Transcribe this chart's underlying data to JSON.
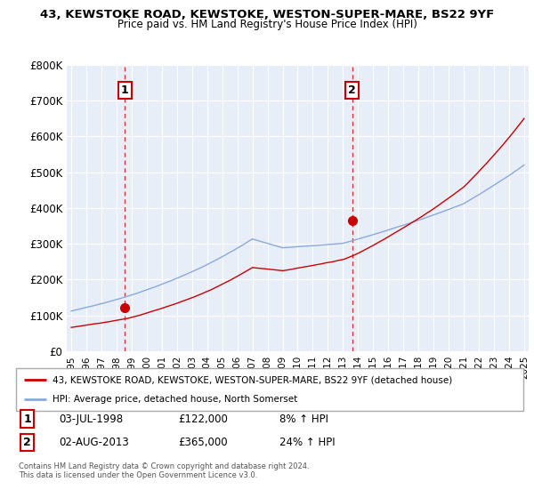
{
  "title": "43, KEWSTOKE ROAD, KEWSTOKE, WESTON-SUPER-MARE, BS22 9YF",
  "subtitle": "Price paid vs. HM Land Registry's House Price Index (HPI)",
  "legend_line1": "43, KEWSTOKE ROAD, KEWSTOKE, WESTON-SUPER-MARE, BS22 9YF (detached house)",
  "legend_line2": "HPI: Average price, detached house, North Somerset",
  "footnote": "Contains HM Land Registry data © Crown copyright and database right 2024.\nThis data is licensed under the Open Government Licence v3.0.",
  "sale1_label": "1",
  "sale1_date": "03-JUL-1998",
  "sale1_price": "£122,000",
  "sale1_hpi": "8% ↑ HPI",
  "sale2_label": "2",
  "sale2_date": "02-AUG-2013",
  "sale2_price": "£365,000",
  "sale2_hpi": "24% ↑ HPI",
  "property_color": "#cc0000",
  "hpi_color": "#88aadd",
  "chart_bg": "#e8eef8",
  "ylim": [
    0,
    800000
  ],
  "yticks": [
    0,
    100000,
    200000,
    300000,
    400000,
    500000,
    600000,
    700000,
    800000
  ],
  "ytick_labels": [
    "£0",
    "£100K",
    "£200K",
    "£300K",
    "£400K",
    "£500K",
    "£600K",
    "£700K",
    "£800K"
  ],
  "sale1_year": 1998.55,
  "sale1_value": 122000,
  "sale2_year": 2013.6,
  "sale2_value": 365000
}
